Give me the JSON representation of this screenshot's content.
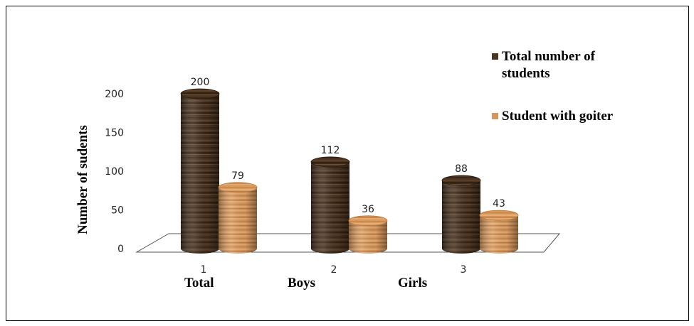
{
  "chart_data": {
    "type": "bar",
    "categories": [
      "1",
      "2",
      "3"
    ],
    "category_names": [
      "Total",
      "Boys",
      "Girls"
    ],
    "series": [
      {
        "name": "Total number of students",
        "values": [
          200,
          112,
          88
        ],
        "color": "#4a3422"
      },
      {
        "name": "Student with goiter",
        "values": [
          79,
          36,
          43
        ],
        "color": "#d6955a"
      }
    ],
    "ylabel": "Number of sudents",
    "yticks": [
      0,
      50,
      100,
      150,
      200
    ],
    "ylim": [
      0,
      200
    ],
    "legend_position": "right",
    "legend_lines": [
      [
        "Total number of",
        "students"
      ],
      [
        "Student with goiter"
      ]
    ],
    "grid": false
  }
}
